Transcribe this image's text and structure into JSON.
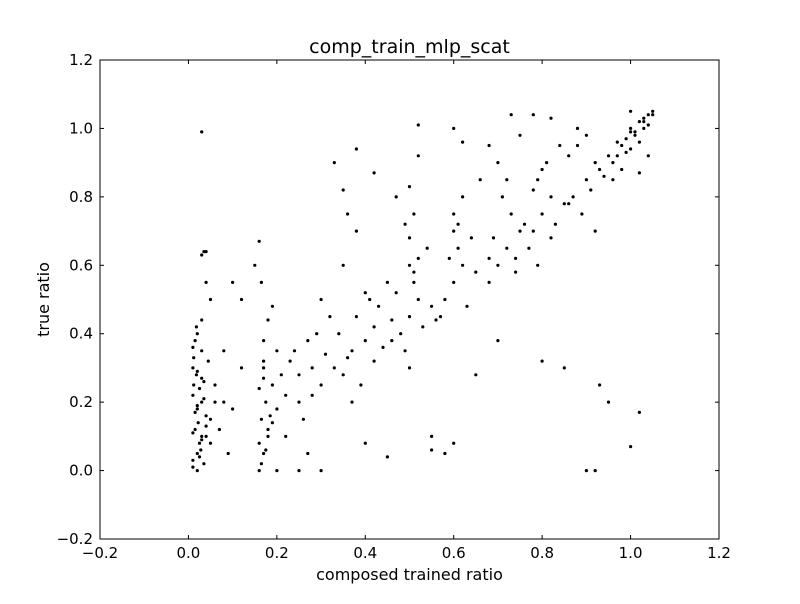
{
  "chart_data": {
    "type": "scatter",
    "title": "comp_train_mlp_scat",
    "xlabel": "composed trained ratio",
    "ylabel": "true ratio",
    "xlim": [
      -0.2,
      1.2
    ],
    "ylim": [
      -0.2,
      1.2
    ],
    "x_ticks": [
      -0.2,
      0.0,
      0.2,
      0.4,
      0.6,
      0.8,
      1.0,
      1.2
    ],
    "y_ticks": [
      -0.2,
      0.0,
      0.2,
      0.4,
      0.6,
      0.8,
      1.0,
      1.2
    ],
    "x_tick_labels": [
      "−0.2",
      "0.0",
      "0.2",
      "0.4",
      "0.6",
      "0.8",
      "1.0",
      "1.2"
    ],
    "y_tick_labels": [
      "−0.2",
      "0.0",
      "0.2",
      "0.4",
      "0.6",
      "0.8",
      "1.0",
      "1.2"
    ],
    "grid": false,
    "marker_color": "#000000",
    "series": [
      {
        "x": [
          0.01,
          0.02,
          0.015,
          0.03,
          0.01,
          0.025,
          0.02,
          0.04,
          0.012,
          0.03,
          0.05,
          0.02,
          0.01,
          0.035,
          0.018,
          0.028,
          0.045,
          0.022,
          0.06,
          0.015,
          0.02,
          0.01,
          0.03,
          0.04,
          0.025,
          0.012,
          0.018,
          0.035,
          0.05,
          0.03,
          0.07,
          0.08,
          0.09,
          0.1,
          0.12,
          0.06,
          0.05,
          0.04,
          0.035,
          0.03,
          0.01,
          0.02,
          0.03,
          0.04,
          0.01,
          0.025,
          0.015,
          0.02,
          0.035,
          0.03,
          0.16,
          0.17,
          0.18,
          0.165,
          0.175,
          0.19,
          0.17,
          0.16,
          0.18,
          0.2,
          0.22,
          0.17,
          0.165,
          0.185,
          0.21,
          0.16,
          0.175,
          0.19,
          0.2,
          0.17,
          0.17,
          0.18,
          0.165,
          0.16,
          0.19,
          0.22,
          0.25,
          0.28,
          0.3,
          0.26,
          0.24,
          0.27,
          0.29,
          0.32,
          0.23,
          0.25,
          0.28,
          0.3,
          0.27,
          0.31,
          0.33,
          0.35,
          0.37,
          0.4,
          0.42,
          0.38,
          0.36,
          0.34,
          0.41,
          0.43,
          0.39,
          0.45,
          0.44,
          0.46,
          0.37,
          0.35,
          0.4,
          0.42,
          0.38,
          0.36,
          0.48,
          0.5,
          0.52,
          0.51,
          0.5,
          0.49,
          0.53,
          0.55,
          0.47,
          0.51,
          0.5,
          0.52,
          0.56,
          0.54,
          0.46,
          0.5,
          0.51,
          0.49,
          0.58,
          0.6,
          0.62,
          0.61,
          0.6,
          0.63,
          0.65,
          0.59,
          0.61,
          0.64,
          0.57,
          0.6,
          0.62,
          0.66,
          0.68,
          0.7,
          0.72,
          0.75,
          0.73,
          0.71,
          0.74,
          0.69,
          0.76,
          0.72,
          0.7,
          0.68,
          0.74,
          0.78,
          0.8,
          0.82,
          0.79,
          0.81,
          0.83,
          0.85,
          0.78,
          0.8,
          0.84,
          0.77,
          0.82,
          0.86,
          0.79,
          0.87,
          0.9,
          0.92,
          0.88,
          0.91,
          0.93,
          0.89,
          0.95,
          0.9,
          0.88,
          0.92,
          0.86,
          0.94,
          0.96,
          0.98,
          1.0,
          1.02,
          1.04,
          0.97,
          0.99,
          1.01,
          1.03,
          1.05,
          0.98,
          1.0,
          1.02,
          1.04,
          0.96,
          1.01,
          1.03,
          0.99,
          1.05,
          1.0,
          1.02,
          1.04,
          0.97,
          1.0,
          1.03,
          0.03,
          0.04,
          0.35,
          0.38,
          0.5,
          0.52,
          0.62,
          0.73,
          0.78,
          0.85,
          0.9,
          0.95,
          1.0,
          1.02,
          0.92,
          0.93,
          0.55,
          0.58,
          0.6,
          0.65,
          0.7,
          0.8,
          0.55,
          0.45,
          0.3,
          0.25,
          0.4,
          0.2,
          0.15,
          0.1,
          0.08,
          0.12,
          0.33,
          0.42,
          0.47,
          0.52,
          0.6,
          0.68,
          0.75,
          0.82
        ],
        "y": [
          0.01,
          0.05,
          0.12,
          0.2,
          0.3,
          0.08,
          0.18,
          0.1,
          0.25,
          0.35,
          0.15,
          0.4,
          0.22,
          0.02,
          0.28,
          0.06,
          0.32,
          0.14,
          0.2,
          0.38,
          0.0,
          0.03,
          0.1,
          0.16,
          0.24,
          0.33,
          0.42,
          0.26,
          0.08,
          0.44,
          0.12,
          0.2,
          0.05,
          0.18,
          0.3,
          0.25,
          0.5,
          0.55,
          0.64,
          0.63,
          0.11,
          0.19,
          0.27,
          0.13,
          0.36,
          0.04,
          0.17,
          0.29,
          0.21,
          0.09,
          0.0,
          0.05,
          0.1,
          0.15,
          0.2,
          0.25,
          0.3,
          0.08,
          0.12,
          0.18,
          0.22,
          0.27,
          0.02,
          0.16,
          0.28,
          0.24,
          0.06,
          0.14,
          0.35,
          0.32,
          0.38,
          0.44,
          0.55,
          0.67,
          0.48,
          0.1,
          0.2,
          0.3,
          0.25,
          0.15,
          0.35,
          0.05,
          0.4,
          0.45,
          0.32,
          0.28,
          0.22,
          0.5,
          0.38,
          0.34,
          0.3,
          0.28,
          0.35,
          0.38,
          0.42,
          0.45,
          0.33,
          0.4,
          0.5,
          0.48,
          0.25,
          0.55,
          0.36,
          0.44,
          0.2,
          0.6,
          0.52,
          0.32,
          0.7,
          0.75,
          0.4,
          0.45,
          0.5,
          0.55,
          0.6,
          0.35,
          0.42,
          0.48,
          0.52,
          0.58,
          0.3,
          0.62,
          0.44,
          0.65,
          0.38,
          0.68,
          0.75,
          0.72,
          0.5,
          0.55,
          0.6,
          0.65,
          0.7,
          0.48,
          0.58,
          0.62,
          0.72,
          0.68,
          0.45,
          0.75,
          0.8,
          0.85,
          0.62,
          0.6,
          0.65,
          0.7,
          0.75,
          0.8,
          0.62,
          0.68,
          0.72,
          0.85,
          0.9,
          0.55,
          0.58,
          0.7,
          0.75,
          0.8,
          0.85,
          0.9,
          0.72,
          0.78,
          0.82,
          0.88,
          0.95,
          0.65,
          0.68,
          0.92,
          0.6,
          0.8,
          0.85,
          0.9,
          0.95,
          0.82,
          0.88,
          0.75,
          0.92,
          0.98,
          1.0,
          0.7,
          0.78,
          0.86,
          0.9,
          0.95,
          1.0,
          1.02,
          1.04,
          0.92,
          0.97,
          0.99,
          1.03,
          1.05,
          0.88,
          0.94,
          0.96,
          1.01,
          0.85,
          0.98,
          1.0,
          0.93,
          1.04,
          1.05,
          0.87,
          0.92,
          0.96,
          0.99,
          1.02,
          0.99,
          0.64,
          0.82,
          0.94,
          0.83,
          1.01,
          0.96,
          1.04,
          1.04,
          0.3,
          0.0,
          0.2,
          0.07,
          0.17,
          0.0,
          0.25,
          0.1,
          0.05,
          0.08,
          0.28,
          0.38,
          0.32,
          0.06,
          0.04,
          0.0,
          0.0,
          0.08,
          0.0,
          0.6,
          0.55,
          0.35,
          0.5,
          0.9,
          0.87,
          0.8,
          0.92,
          1.0,
          0.95,
          0.98,
          1.03
        ]
      }
    ]
  }
}
